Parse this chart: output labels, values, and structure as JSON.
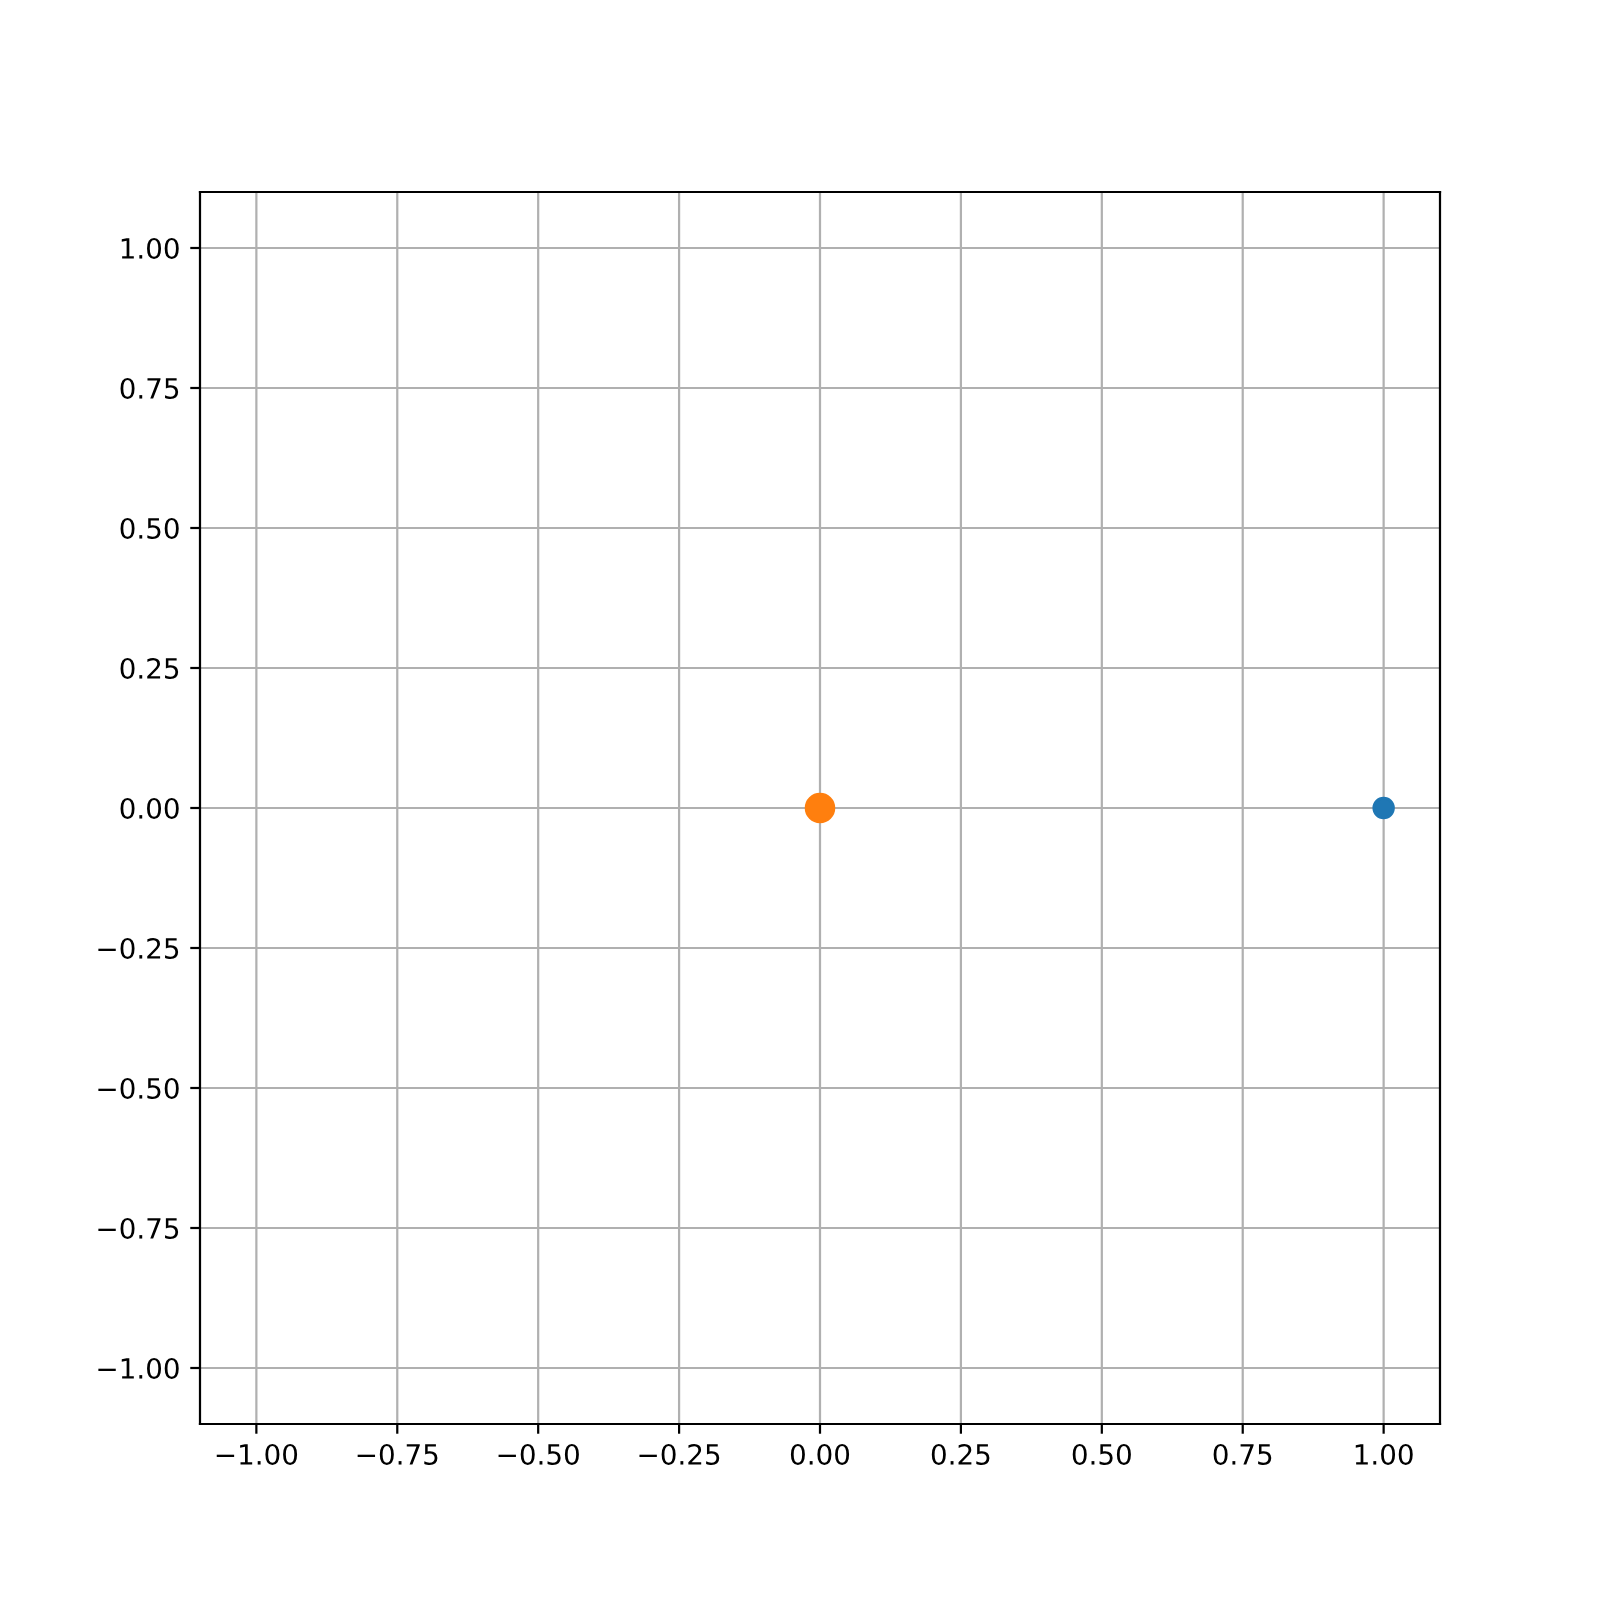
{
  "chart_data": {
    "type": "bubble",
    "xlim": [
      -1.1,
      1.1
    ],
    "ylim": [
      -1.1,
      1.1
    ],
    "xticks": [
      {
        "value": -1,
        "label": "−1.00"
      },
      {
        "value": -0.75,
        "label": "−0.75"
      },
      {
        "value": -0.5,
        "label": "−0.50"
      },
      {
        "value": -0.25,
        "label": "−0.25"
      },
      {
        "value": 0,
        "label": "0.00"
      },
      {
        "value": 0.25,
        "label": "0.25"
      },
      {
        "value": 0.5,
        "label": "0.50"
      },
      {
        "value": 0.75,
        "label": "0.75"
      },
      {
        "value": 1,
        "label": "1.00"
      }
    ],
    "yticks": [
      {
        "value": -1,
        "label": "−1.00"
      },
      {
        "value": -0.75,
        "label": "−0.75"
      },
      {
        "value": -0.5,
        "label": "−0.50"
      },
      {
        "value": -0.25,
        "label": "−0.25"
      },
      {
        "value": 0,
        "label": "0.00"
      },
      {
        "value": 0.25,
        "label": "0.25"
      },
      {
        "value": 0.5,
        "label": "0.50"
      },
      {
        "value": 0.75,
        "label": "0.75"
      },
      {
        "value": 1,
        "label": "1.00"
      }
    ],
    "grid": true,
    "series": [
      {
        "color": "#1f77b4",
        "x": [
          1
        ],
        "values": [
          0
        ],
        "sizes": [
          0.5
        ]
      },
      {
        "color": "#ff7f0e",
        "x": [
          0
        ],
        "values": [
          0
        ],
        "sizes": [
          1
        ]
      }
    ]
  }
}
